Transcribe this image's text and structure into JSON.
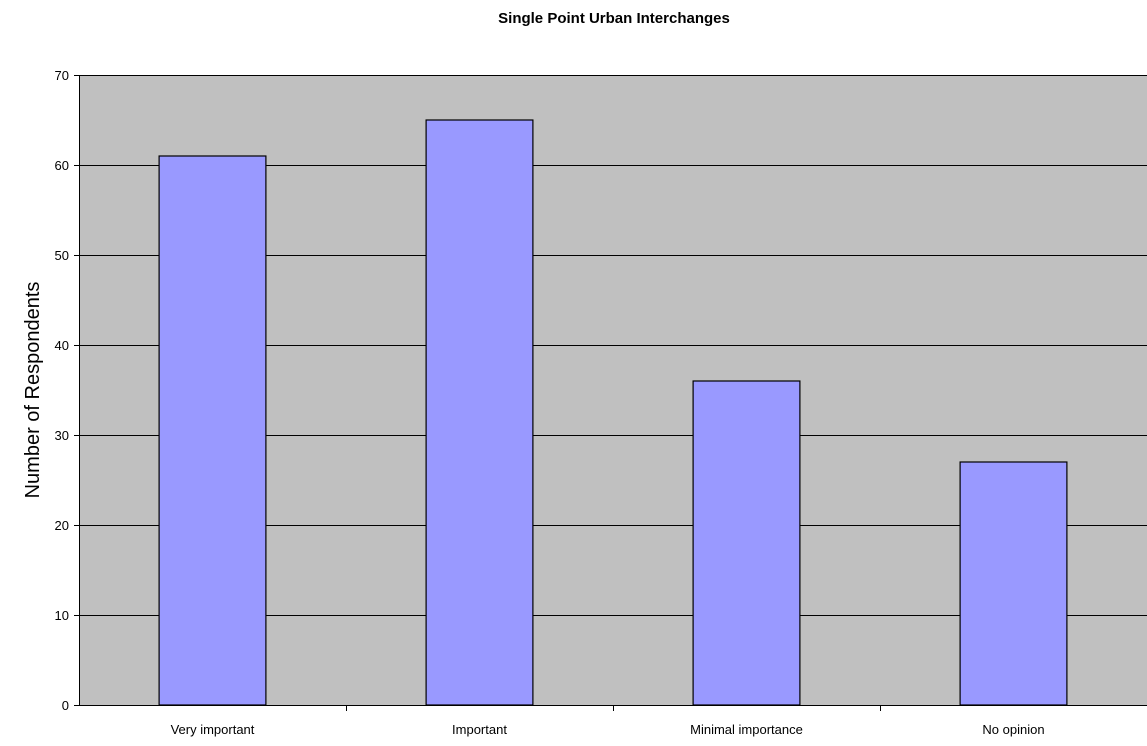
{
  "chart_data": {
    "type": "bar",
    "title": "Single Point Urban Interchanges",
    "xlabel": "",
    "ylabel": "Number of Respondents",
    "categories": [
      "Very important",
      "Important",
      "Minimal importance",
      "No opinion"
    ],
    "values": [
      61,
      65,
      36,
      27
    ],
    "ylim": [
      0,
      70
    ],
    "yticks": [
      0,
      10,
      20,
      30,
      40,
      50,
      60,
      70
    ],
    "grid": true,
    "legend": "none",
    "colors": {
      "bar_fill": "#9999ff",
      "bar_stroke": "#000000",
      "plot_background": "#c0c0c0",
      "gridline": "#000000"
    }
  }
}
